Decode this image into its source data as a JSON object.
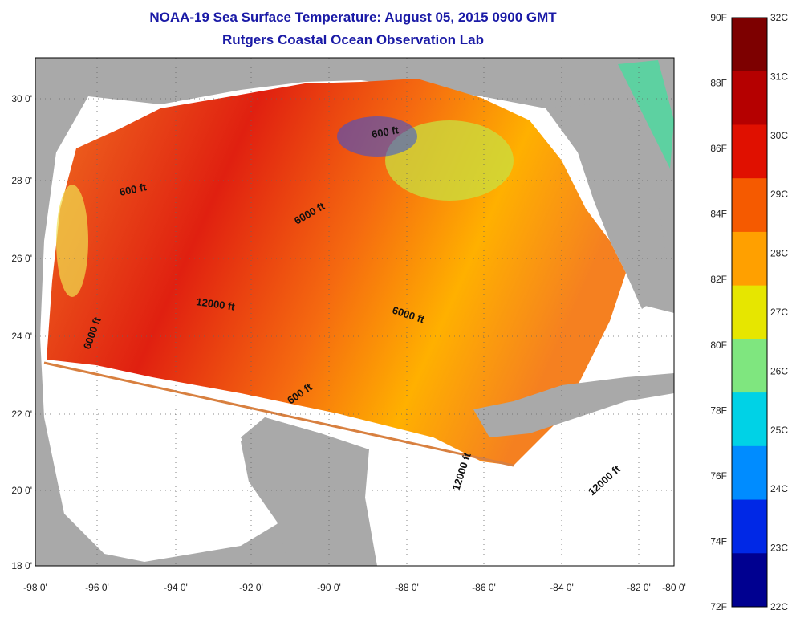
{
  "title": {
    "line1": "NOAA-19 Sea Surface Temperature:  August 05, 2015 0900 GMT",
    "line2": "Rutgers Coastal Ocean Observation Lab"
  },
  "axes": {
    "longitude_ticks": [
      "-98 0'",
      "-96 0'",
      "-94 0'",
      "-92 0'",
      "-90 0'",
      "-88 0'",
      "-86 0'",
      "-84 0'",
      "-82 0'",
      "-80 0'"
    ],
    "latitude_ticks": [
      "30 0'",
      "28 0'",
      "26 0'",
      "24 0'",
      "22 0'",
      "20 0'",
      "18 0'"
    ]
  },
  "contour_labels": [
    "600 ft",
    "600 ft",
    "6000 ft",
    "12000 ft",
    "6000 ft",
    "6000 ft",
    "600 ft",
    "12000 ft",
    "12000 ft"
  ],
  "colorbar": {
    "fahrenheit_labels": [
      "90F",
      "88F",
      "86F",
      "84F",
      "82F",
      "80F",
      "78F",
      "76F",
      "74F",
      "72F"
    ],
    "celsius_labels": [
      "32C",
      "31C",
      "30C",
      "29C",
      "28C",
      "27C",
      "26C",
      "25C",
      "24C",
      "23C",
      "22C"
    ],
    "colors": [
      "#7d0000",
      "#b50000",
      "#e01000",
      "#f55a00",
      "#ffa000",
      "#e6e600",
      "#7fe67f",
      "#00d2e6",
      "#008cff",
      "#0028e6",
      "#000090"
    ]
  },
  "colors": {
    "land": "#a9a9a9",
    "no_data_ocean": "#ffffff",
    "title_text": "#1a1aa6"
  }
}
